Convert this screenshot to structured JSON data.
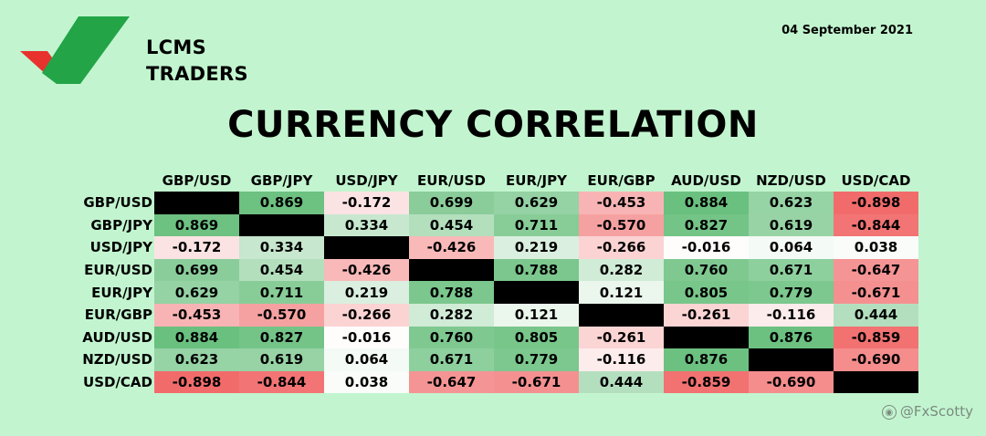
{
  "logo": {
    "line1": "LCMS",
    "line2": "TRADERS"
  },
  "date": "04 September 2021",
  "title": "CURRENCY CORRELATION",
  "watermark": {
    "icon": "weibo-icon",
    "text": "@FxScotty"
  },
  "colors": {
    "background": "#c2f5cf",
    "positive": "#57b86e",
    "negative": "#f05a5a",
    "neutral": "#ffffff",
    "diagonal": "#000000"
  },
  "chart_data": {
    "type": "heatmap",
    "title": "CURRENCY CORRELATION",
    "columns": [
      "GBP/USD",
      "GBP/JPY",
      "USD/JPY",
      "EUR/USD",
      "EUR/JPY",
      "EUR/GBP",
      "AUD/USD",
      "NZD/USD",
      "USD/CAD"
    ],
    "rows": [
      "GBP/USD",
      "GBP/JPY",
      "USD/JPY",
      "EUR/USD",
      "EUR/JPY",
      "EUR/GBP",
      "AUD/USD",
      "NZD/USD",
      "USD/CAD"
    ],
    "values": [
      [
        null,
        "0.869",
        "-0.172",
        "0.699",
        "0.629",
        "-0.453",
        "0.884",
        "0.623",
        "-0.898"
      ],
      [
        "0.869",
        null,
        "0.334",
        "0.454",
        "0.711",
        "-0.570",
        "0.827",
        "0.619",
        "-0.844"
      ],
      [
        "-0.172",
        "0.334",
        null,
        "-0.426",
        "0.219",
        "-0.266",
        "-0.016",
        "0.064",
        "0.038"
      ],
      [
        "0.699",
        "0.454",
        "-0.426",
        null,
        "0.788",
        "0.282",
        "0.760",
        "0.671",
        "-0.647"
      ],
      [
        "0.629",
        "0.711",
        "0.219",
        "0.788",
        null,
        "0.121",
        "0.805",
        "0.779",
        "-0.671"
      ],
      [
        "-0.453",
        "-0.570",
        "-0.266",
        "0.282",
        "0.121",
        null,
        "-0.261",
        "-0.116",
        "0.444"
      ],
      [
        "0.884",
        "0.827",
        "-0.016",
        "0.760",
        "0.805",
        "-0.261",
        null,
        "0.876",
        "-0.859"
      ],
      [
        "0.623",
        "0.619",
        "0.064",
        "0.671",
        "0.779",
        "-0.116",
        "0.876",
        null,
        "-0.690"
      ],
      [
        "-0.898",
        "-0.844",
        "0.038",
        "-0.647",
        "-0.671",
        "0.444",
        "-0.859",
        "-0.690",
        null
      ]
    ],
    "range": [
      -1,
      1
    ],
    "diagonal": "black"
  }
}
